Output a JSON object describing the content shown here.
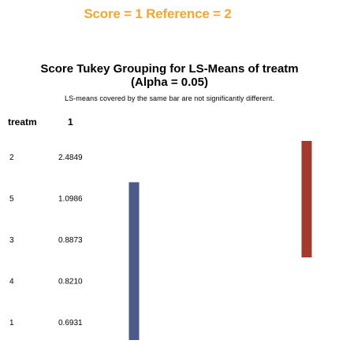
{
  "banner": {
    "text": "Score = 1 Reference = 2",
    "color": "#f0a830"
  },
  "chart_data": {
    "type": "table",
    "title_line1": "Score Tukey Grouping for LS-Means of treatm",
    "title_line2": "(Alpha = 0.05)",
    "subtitle": "LS-means covered by the same bar are not significantly different.",
    "col_treatm": "treatm",
    "col_group": "1",
    "rows": [
      {
        "treatm": "2",
        "lsmean": "2.4849"
      },
      {
        "treatm": "5",
        "lsmean": "1.0986"
      },
      {
        "treatm": "3",
        "lsmean": "0.8873"
      },
      {
        "treatm": "4",
        "lsmean": "0.8210"
      },
      {
        "treatm": "1",
        "lsmean": "0.6931"
      }
    ],
    "groups": [
      {
        "color": "#4a5a8a",
        "from_row": 1,
        "to_row": 4
      },
      {
        "color": "#a33a2e",
        "from_row": 0,
        "to_row": 2
      }
    ]
  }
}
